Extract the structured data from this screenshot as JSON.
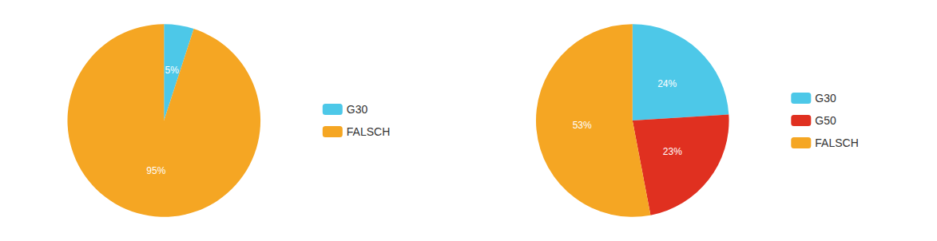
{
  "chart_data": [
    {
      "type": "pie",
      "categories": [
        "G30",
        "FALSCH"
      ],
      "values": [
        5,
        95
      ],
      "value_labels": [
        "5%",
        "95%"
      ],
      "colors": [
        "#4DC8E8",
        "#F5A623"
      ],
      "data_labels": true,
      "legend": "right"
    },
    {
      "type": "pie",
      "categories": [
        "G30",
        "G50",
        "FALSCH"
      ],
      "values": [
        24,
        23,
        53
      ],
      "value_labels": [
        "24%",
        "23%",
        "53%"
      ],
      "colors": [
        "#4DC8E8",
        "#E03020",
        "#F5A623"
      ],
      "data_labels": true,
      "legend": "right"
    }
  ]
}
